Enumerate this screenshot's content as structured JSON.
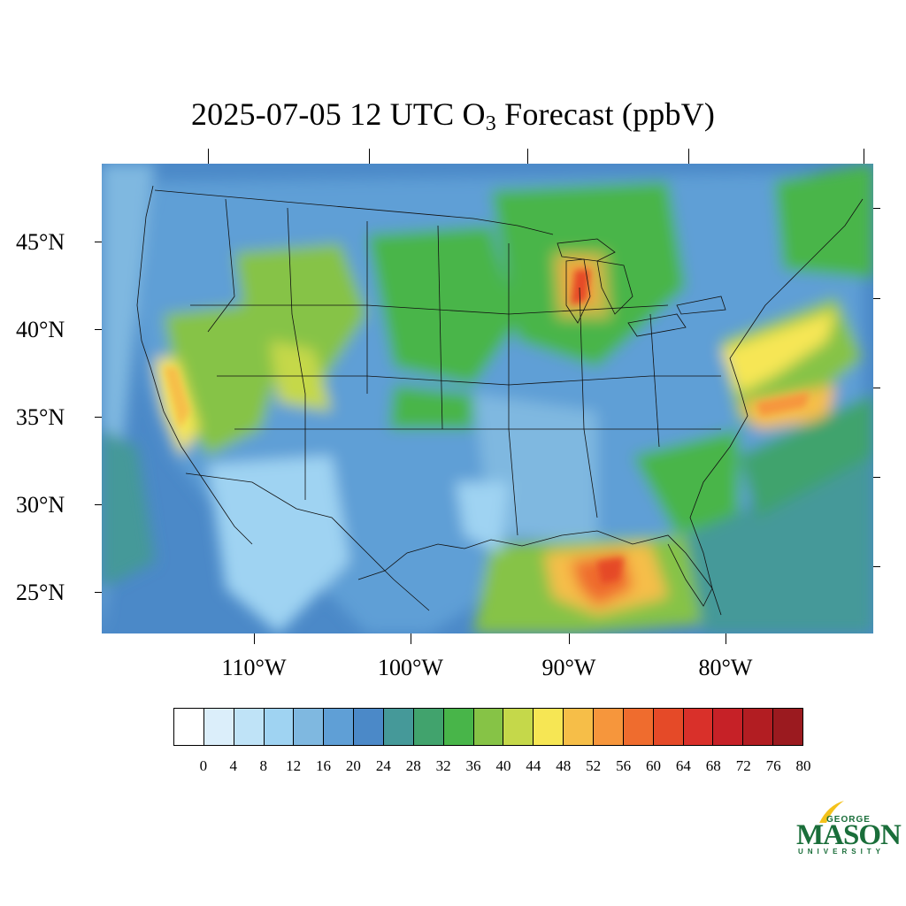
{
  "title": {
    "prefix": "2025-07-05 12 UTC O",
    "subscript": "3",
    "suffix": " Forecast (ppbV)"
  },
  "map": {
    "region": "Contiguous United States",
    "lat_labels": [
      "45°N",
      "40°N",
      "35°N",
      "30°N",
      "25°N"
    ],
    "lon_labels": [
      "110°W",
      "100°W",
      "90°W",
      "80°W"
    ]
  },
  "colorbar": {
    "colors": [
      "#ffffff",
      "#dbeefa",
      "#bfe3f7",
      "#9fd3f2",
      "#7fb8e0",
      "#5f9fd6",
      "#4b89c8",
      "#459999",
      "#41a36d",
      "#48b549",
      "#86c346",
      "#c5d84a",
      "#f6e654",
      "#f6be48",
      "#f6963c",
      "#ef6c2e",
      "#e54a28",
      "#d9302a",
      "#c62127",
      "#b21d22",
      "#9b1a1f"
    ],
    "labels": [
      "0",
      "4",
      "8",
      "12",
      "16",
      "20",
      "24",
      "28",
      "32",
      "36",
      "40",
      "44",
      "48",
      "52",
      "56",
      "60",
      "64",
      "68",
      "72",
      "76",
      "80"
    ]
  },
  "logo": {
    "line1": "GEORGE",
    "line2": "MASON",
    "line3": "UNIVERSITY"
  }
}
